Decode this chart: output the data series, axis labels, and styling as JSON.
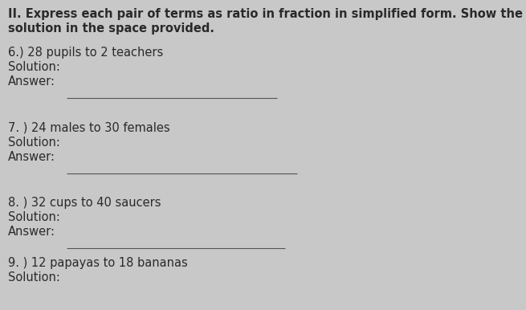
{
  "bg_color": "#c8c8c8",
  "text_color": "#2a2a2a",
  "title_line1": "II. Express each pair of terms as ratio in fraction in simplified form. Show the",
  "title_line2": "solution in the space provided.",
  "items": [
    {
      "number": "6.) 28 pupils to 2 teachers",
      "solution_label": "Solution:",
      "answer_label": "Answer:"
    },
    {
      "number": "7. ) 24 males to 30 females",
      "solution_label": "Solution:",
      "answer_label": "Answer:"
    },
    {
      "number": "8. ) 32 cups to 40 saucers",
      "solution_label": "Solution:",
      "answer_label": "Answer:"
    },
    {
      "number": "9. ) 12 papayas to 18 bananas",
      "solution_label": "Solution:"
    }
  ],
  "line_color": "#555555",
  "title_fontsize": 10.5,
  "body_fontsize": 10.5
}
